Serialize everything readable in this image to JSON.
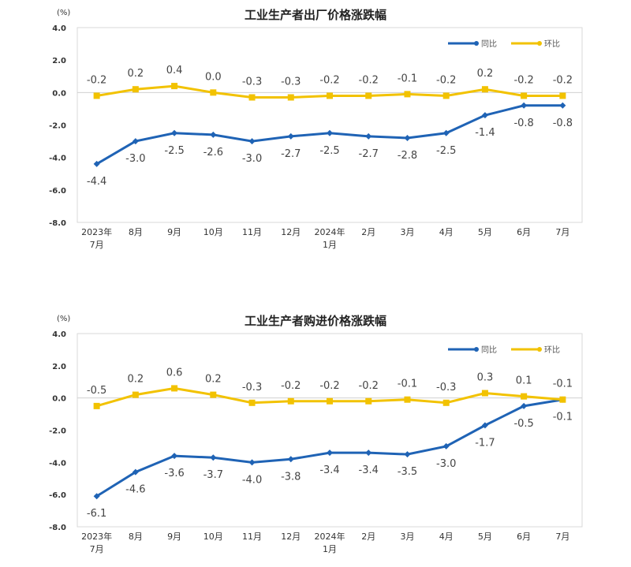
{
  "chart_data": [
    {
      "type": "line",
      "title": "工业生产者出厂价格涨跌幅",
      "ylabel": "(%)",
      "ylim": [
        -8.0,
        4.0
      ],
      "yticks": [
        "4.0",
        "2.0",
        "0.0",
        "-2.0",
        "-4.0",
        "-6.0",
        "-8.0"
      ],
      "categories": [
        "2023年\n7月",
        "8月",
        "9月",
        "10月",
        "11月",
        "12月",
        "2024年\n1月",
        "2月",
        "3月",
        "4月",
        "5月",
        "6月",
        "7月"
      ],
      "legend_position": "top-right",
      "series": [
        {
          "name": "同比",
          "color": "#1f63b5",
          "values": [
            -4.4,
            -3.0,
            -2.5,
            -2.6,
            -3.0,
            -2.7,
            -2.5,
            -2.7,
            -2.8,
            -2.5,
            -1.4,
            -0.8,
            -0.8
          ]
        },
        {
          "name": "环比",
          "color": "#f2c200",
          "values": [
            -0.2,
            0.2,
            0.4,
            0.0,
            -0.3,
            -0.3,
            -0.2,
            -0.2,
            -0.1,
            -0.2,
            0.2,
            -0.2,
            -0.2
          ]
        }
      ]
    },
    {
      "type": "line",
      "title": "工业生产者购进价格涨跌幅",
      "ylabel": "(%)",
      "ylim": [
        -8.0,
        4.0
      ],
      "yticks": [
        "4.0",
        "2.0",
        "0.0",
        "-2.0",
        "-4.0",
        "-6.0",
        "-8.0"
      ],
      "categories": [
        "2023年\n7月",
        "8月",
        "9月",
        "10月",
        "11月",
        "12月",
        "2024年\n1月",
        "2月",
        "3月",
        "4月",
        "5月",
        "6月",
        "7月"
      ],
      "legend_position": "top-right",
      "series": [
        {
          "name": "同比",
          "color": "#1f63b5",
          "values": [
            -6.1,
            -4.6,
            -3.6,
            -3.7,
            -4.0,
            -3.8,
            -3.4,
            -3.4,
            -3.5,
            -3.0,
            -1.7,
            -0.5,
            -0.1
          ]
        },
        {
          "name": "环比",
          "color": "#f2c200",
          "values": [
            -0.5,
            0.2,
            0.6,
            0.2,
            -0.3,
            -0.2,
            -0.2,
            -0.2,
            -0.1,
            -0.3,
            0.3,
            0.1,
            -0.1
          ]
        }
      ]
    }
  ]
}
